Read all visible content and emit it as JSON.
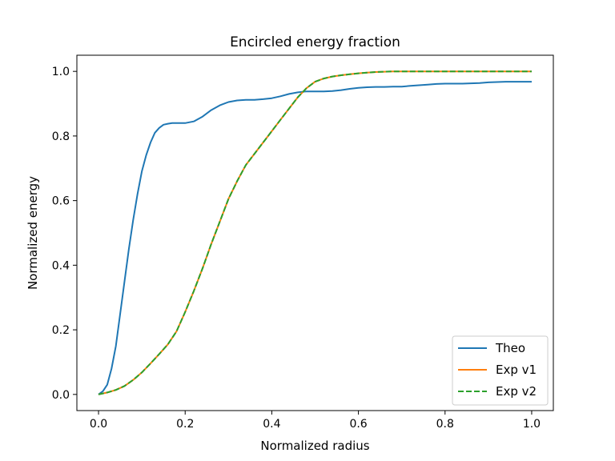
{
  "chart_data": {
    "type": "line",
    "title": "Encircled energy fraction",
    "xlabel": "Normalized radius",
    "ylabel": "Normalized energy",
    "xlim": [
      -0.05,
      1.05
    ],
    "ylim": [
      -0.05,
      1.05
    ],
    "xticks": [
      0.0,
      0.2,
      0.4,
      0.6,
      0.8,
      1.0
    ],
    "xtick_labels": [
      "0.0",
      "0.2",
      "0.4",
      "0.6",
      "0.8",
      "1.0"
    ],
    "yticks": [
      0.0,
      0.2,
      0.4,
      0.6,
      0.8,
      1.0
    ],
    "ytick_labels": [
      "0.0",
      "0.2",
      "0.4",
      "0.6",
      "0.8",
      "1.0"
    ],
    "grid": false,
    "legend": "lower-right",
    "series": [
      {
        "name": "Theo",
        "color": "#1f77b4",
        "style": "solid",
        "x": [
          0.0,
          0.01,
          0.02,
          0.03,
          0.04,
          0.05,
          0.06,
          0.07,
          0.08,
          0.09,
          0.1,
          0.11,
          0.12,
          0.13,
          0.14,
          0.15,
          0.16,
          0.17,
          0.18,
          0.19,
          0.2,
          0.22,
          0.24,
          0.26,
          0.28,
          0.3,
          0.32,
          0.34,
          0.36,
          0.38,
          0.4,
          0.42,
          0.44,
          0.46,
          0.48,
          0.5,
          0.52,
          0.54,
          0.56,
          0.58,
          0.6,
          0.62,
          0.64,
          0.66,
          0.68,
          0.7,
          0.72,
          0.74,
          0.76,
          0.78,
          0.8,
          0.82,
          0.84,
          0.86,
          0.88,
          0.9,
          0.92,
          0.94,
          0.96,
          0.98,
          1.0
        ],
        "y": [
          0.0,
          0.01,
          0.03,
          0.08,
          0.15,
          0.25,
          0.35,
          0.45,
          0.54,
          0.62,
          0.69,
          0.74,
          0.78,
          0.81,
          0.825,
          0.835,
          0.838,
          0.84,
          0.84,
          0.84,
          0.84,
          0.845,
          0.86,
          0.88,
          0.895,
          0.905,
          0.91,
          0.912,
          0.912,
          0.914,
          0.917,
          0.923,
          0.93,
          0.935,
          0.938,
          0.938,
          0.938,
          0.939,
          0.942,
          0.946,
          0.949,
          0.951,
          0.952,
          0.952,
          0.953,
          0.953,
          0.955,
          0.957,
          0.959,
          0.961,
          0.962,
          0.962,
          0.962,
          0.963,
          0.964,
          0.966,
          0.967,
          0.968,
          0.968,
          0.968,
          0.968
        ]
      },
      {
        "name": "Exp v1",
        "color": "#ff7f0e",
        "style": "solid",
        "x": [
          0.0,
          0.02,
          0.04,
          0.06,
          0.08,
          0.1,
          0.12,
          0.14,
          0.16,
          0.18,
          0.2,
          0.22,
          0.24,
          0.26,
          0.28,
          0.3,
          0.32,
          0.34,
          0.36,
          0.38,
          0.4,
          0.42,
          0.44,
          0.46,
          0.48,
          0.5,
          0.52,
          0.54,
          0.56,
          0.58,
          0.6,
          0.62,
          0.64,
          0.66,
          0.68,
          0.7,
          0.75,
          0.8,
          0.85,
          0.9,
          0.95,
          1.0
        ],
        "y": [
          0.0,
          0.006,
          0.014,
          0.026,
          0.045,
          0.068,
          0.096,
          0.125,
          0.155,
          0.195,
          0.255,
          0.32,
          0.39,
          0.465,
          0.535,
          0.605,
          0.66,
          0.71,
          0.745,
          0.78,
          0.815,
          0.85,
          0.885,
          0.92,
          0.948,
          0.968,
          0.978,
          0.984,
          0.988,
          0.991,
          0.994,
          0.996,
          0.998,
          0.999,
          1.0,
          1.0,
          1.0,
          1.0,
          1.0,
          1.0,
          1.0,
          1.0
        ]
      },
      {
        "name": "Exp v2",
        "color": "#2ca02c",
        "style": "dashed",
        "x": [
          0.0,
          0.02,
          0.04,
          0.06,
          0.08,
          0.1,
          0.12,
          0.14,
          0.16,
          0.18,
          0.2,
          0.22,
          0.24,
          0.26,
          0.28,
          0.3,
          0.32,
          0.34,
          0.36,
          0.38,
          0.4,
          0.42,
          0.44,
          0.46,
          0.48,
          0.5,
          0.52,
          0.54,
          0.56,
          0.58,
          0.6,
          0.62,
          0.64,
          0.66,
          0.68,
          0.7,
          0.75,
          0.8,
          0.85,
          0.9,
          0.95,
          1.0
        ],
        "y": [
          0.0,
          0.006,
          0.014,
          0.026,
          0.045,
          0.068,
          0.096,
          0.125,
          0.155,
          0.195,
          0.255,
          0.32,
          0.39,
          0.465,
          0.535,
          0.605,
          0.66,
          0.71,
          0.745,
          0.78,
          0.815,
          0.85,
          0.885,
          0.92,
          0.948,
          0.968,
          0.978,
          0.984,
          0.988,
          0.991,
          0.994,
          0.996,
          0.998,
          0.999,
          1.0,
          1.0,
          1.0,
          1.0,
          1.0,
          1.0,
          1.0,
          1.0
        ]
      }
    ]
  }
}
